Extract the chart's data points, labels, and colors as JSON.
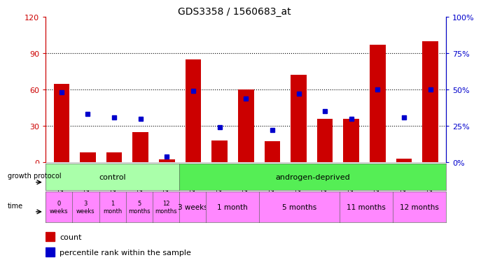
{
  "title": "GDS3358 / 1560683_at",
  "samples": [
    "GSM215632",
    "GSM215633",
    "GSM215636",
    "GSM215639",
    "GSM215642",
    "GSM215634",
    "GSM215635",
    "GSM215637",
    "GSM215638",
    "GSM215640",
    "GSM215641",
    "GSM215645",
    "GSM215646",
    "GSM215643",
    "GSM215644"
  ],
  "counts": [
    65,
    8,
    8,
    25,
    2,
    85,
    18,
    60,
    17,
    72,
    36,
    36,
    97,
    3,
    100
  ],
  "percentiles": [
    48,
    33,
    31,
    30,
    4,
    49,
    24,
    44,
    22,
    47,
    35,
    30,
    50,
    31,
    50
  ],
  "ylim_left": [
    0,
    120
  ],
  "ylim_right": [
    0,
    100
  ],
  "yticks_left": [
    0,
    30,
    60,
    90,
    120
  ],
  "yticks_right": [
    0,
    25,
    50,
    75,
    100
  ],
  "ytick_labels_left": [
    "0",
    "30",
    "60",
    "90",
    "120"
  ],
  "ytick_labels_right": [
    "0%",
    "25%",
    "50%",
    "75%",
    "100%"
  ],
  "left_axis_color": "#cc0000",
  "right_axis_color": "#0000cc",
  "bar_color": "#cc0000",
  "dot_color": "#0000cc",
  "grid_color": "#000000",
  "bg_color": "#ffffff",
  "plot_bg": "#ffffff",
  "control_color": "#aaffaa",
  "androgen_color": "#55ee55",
  "time_color": "#ff88ff",
  "control_label": "control",
  "androgen_label": "androgen-deprived",
  "growth_protocol_label": "growth protocol",
  "time_label": "time",
  "control_count": 5,
  "androgen_count": 10,
  "time_labels_control": [
    "0\nweeks",
    "3\nweeks",
    "1\nmonth",
    "5\nmonths",
    "12\nmonths"
  ],
  "time_labels_androgen": [
    "3 weeks",
    "1 month",
    "5 months",
    "11 months",
    "12 months"
  ],
  "androgen_time_group_sizes": [
    1,
    2,
    3,
    2,
    2
  ],
  "legend_count_label": "count",
  "legend_pct_label": "percentile rank within the sample"
}
